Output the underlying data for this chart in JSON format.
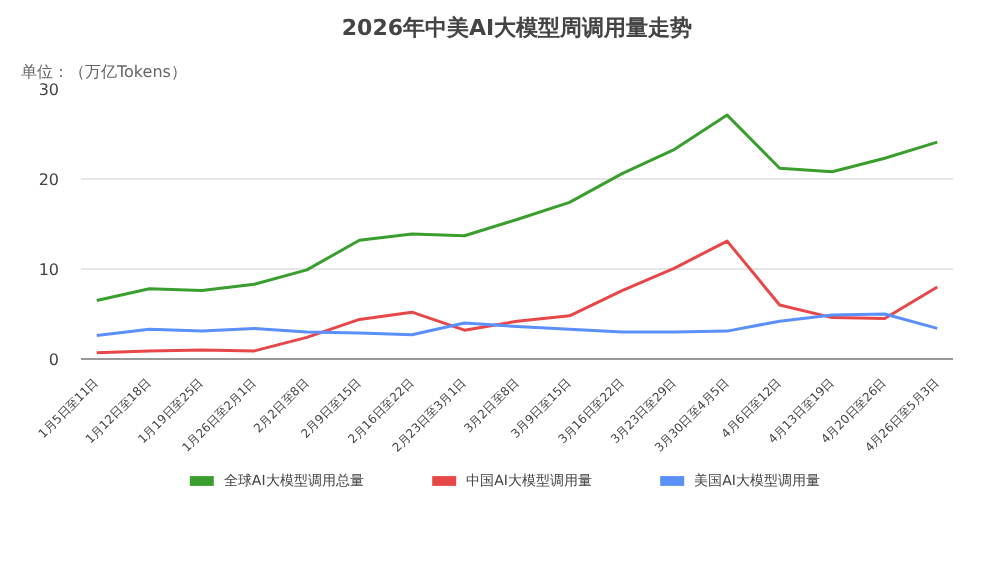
{
  "chart_data": {
    "type": "line",
    "title": "2026年中美AI大模型周调用量走势",
    "ylabel": "单位：（万亿Tokens）",
    "categories": [
      "1月5日至11日",
      "1月12日至18日",
      "1月19日至25日",
      "1月26日至2月1日",
      "2月2日至8日",
      "2月9日至15日",
      "2月16日至22日",
      "2月23日至3月1日",
      "3月2日至8日",
      "3月9日至15日",
      "3月16日至22日",
      "3月23日至29日",
      "3月30日至4月5日",
      "4月6日至12日",
      "4月13日至19日",
      "4月20日至26日",
      "4月26日至5月3日"
    ],
    "series": [
      {
        "name": "全球AI大模型调用总量",
        "color": "#3a9e2e",
        "values": [
          6.5,
          7.8,
          7.6,
          8.3,
          9.9,
          13.2,
          13.9,
          13.7,
          15.5,
          17.4,
          20.6,
          23.3,
          27.1,
          21.2,
          20.8,
          22.3,
          24.1
        ]
      },
      {
        "name": "中国AI大模型调用量",
        "color": "#e8474a",
        "values": [
          0.7,
          0.9,
          1.0,
          0.9,
          2.4,
          4.4,
          5.2,
          3.2,
          4.2,
          4.8,
          7.6,
          10.1,
          13.1,
          6.0,
          4.6,
          4.5,
          8.0
        ]
      },
      {
        "name": "美国AI大模型调用量",
        "color": "#5b8ff9",
        "values": [
          2.6,
          3.3,
          3.1,
          3.4,
          3.0,
          2.9,
          2.7,
          4.0,
          3.6,
          3.3,
          3.0,
          3.0,
          3.1,
          4.2,
          4.9,
          5.0,
          3.4
        ]
      }
    ],
    "ylim": [
      0,
      30
    ],
    "yticks": [
      0,
      10,
      20,
      30
    ],
    "grid": "y",
    "legend": "bottom",
    "marker": "none",
    "line_style": "solid"
  }
}
